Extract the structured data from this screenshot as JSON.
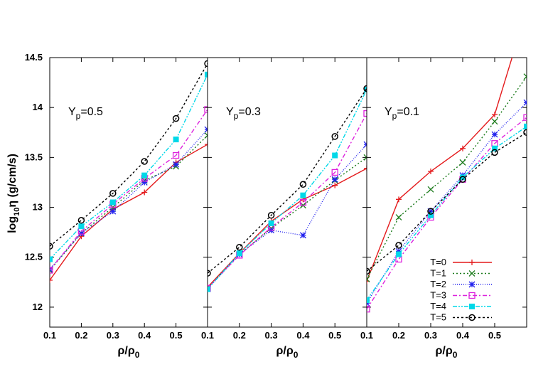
{
  "chart_data": {
    "type": "line",
    "ylabel": "log10η (g/cm/s)",
    "ylabel_parts": {
      "base": "log",
      "sub": "10",
      "rest": "η (g/cm/s)"
    },
    "xlabel_parts": {
      "a": "ρ/ρ",
      "sub": "0"
    },
    "ylim": [
      11.8,
      14.5
    ],
    "yticks": [
      "12",
      "12.5",
      "13",
      "13.5",
      "14",
      "14.5"
    ],
    "legend_position": "bottom-right",
    "series_styles": [
      {
        "name": "T=0",
        "color": "#e41a1c",
        "dash": "",
        "marker": "plus"
      },
      {
        "name": "T=1",
        "color": "#1a7a1a",
        "dash": "2,3",
        "marker": "cross"
      },
      {
        "name": "T=2",
        "color": "#2222ee",
        "dash": "1,2",
        "marker": "star"
      },
      {
        "name": "T=3",
        "color": "#dd22dd",
        "dash": "6,3,2,3",
        "marker": "square"
      },
      {
        "name": "T=4",
        "color": "#00d8e8",
        "dash": "6,2,2,2,2,2",
        "marker": "fsquare"
      },
      {
        "name": "T=5",
        "color": "#000000",
        "dash": "3,3",
        "marker": "circle"
      }
    ],
    "panels": [
      {
        "annotation": {
          "base": "Y",
          "sub": "p",
          "rest": "=0.5"
        },
        "xlim": [
          0.1,
          0.6
        ],
        "xticks": [
          "0.1",
          "0.2",
          "0.3",
          "0.4",
          "0.5"
        ],
        "x": [
          0.1,
          0.2,
          0.3,
          0.4,
          0.5,
          0.6
        ],
        "series": [
          {
            "name": "T=0",
            "values": [
              12.27,
              12.71,
              12.98,
              13.15,
              13.45,
              13.63
            ]
          },
          {
            "name": "T=1",
            "values": [
              12.37,
              12.74,
              13.0,
              13.27,
              13.41,
              13.72
            ]
          },
          {
            "name": "T=2",
            "values": [
              12.38,
              12.74,
              12.96,
              13.25,
              13.43,
              13.78
            ]
          },
          {
            "name": "T=3",
            "values": [
              12.37,
              12.76,
              13.03,
              13.29,
              13.52,
              13.98
            ]
          },
          {
            "name": "T=4",
            "values": [
              12.48,
              12.81,
              13.05,
              13.32,
              13.68,
              14.33
            ]
          },
          {
            "name": "T=5",
            "values": [
              12.61,
              12.87,
              13.14,
              13.46,
              13.89,
              14.44
            ]
          }
        ]
      },
      {
        "annotation": {
          "base": "Y",
          "sub": "p",
          "rest": "=0.3"
        },
        "xlim": [
          0.1,
          0.6
        ],
        "xticks": [
          "0.1",
          "0.2",
          "0.3",
          "0.4",
          "0.5"
        ],
        "x": [
          0.1,
          0.2,
          0.3,
          0.4,
          0.5,
          0.6
        ],
        "series": [
          {
            "name": "T=0",
            "values": [
              12.2,
              12.54,
              12.86,
              13.08,
              13.22,
              13.39
            ]
          },
          {
            "name": "T=1",
            "values": [
              12.19,
              12.53,
              12.79,
              13.02,
              13.27,
              13.5
            ]
          },
          {
            "name": "T=2",
            "values": [
              12.18,
              12.53,
              12.77,
              12.72,
              13.28,
              13.63
            ]
          },
          {
            "name": "T=3",
            "values": [
              12.19,
              12.52,
              12.8,
              13.05,
              13.35,
              13.94
            ]
          },
          {
            "name": "T=4",
            "values": [
              12.18,
              12.54,
              12.84,
              13.12,
              13.52,
              14.18
            ]
          },
          {
            "name": "T=5",
            "values": [
              12.34,
              12.6,
              12.92,
              13.23,
              13.71,
              14.19
            ]
          }
        ]
      },
      {
        "annotation": {
          "base": "Y",
          "sub": "p",
          "rest": "=0.1"
        },
        "xlim": [
          0.1,
          0.6
        ],
        "xticks": [
          "0.1",
          "0.2",
          "0.3",
          "0.4",
          "0.5"
        ],
        "x": [
          0.1,
          0.2,
          0.3,
          0.4,
          0.5,
          0.6
        ],
        "series": [
          {
            "name": "T=0",
            "values": [
              12.26,
              13.08,
              13.36,
              13.59,
              13.93,
              14.98
            ]
          },
          {
            "name": "T=1",
            "values": [
              12.28,
              12.9,
              13.18,
              13.45,
              13.86,
              14.31
            ]
          },
          {
            "name": "T=2",
            "values": [
              12.04,
              12.56,
              12.96,
              13.32,
              13.73,
              14.05
            ]
          },
          {
            "name": "T=3",
            "values": [
              11.98,
              12.48,
              12.9,
              13.28,
              13.64,
              13.9
            ]
          },
          {
            "name": "T=4",
            "values": [
              12.07,
              12.53,
              12.92,
              13.3,
              13.59,
              13.81
            ]
          },
          {
            "name": "T=5",
            "values": [
              12.36,
              12.62,
              12.96,
              13.28,
              13.55,
              13.75
            ]
          }
        ]
      }
    ]
  }
}
